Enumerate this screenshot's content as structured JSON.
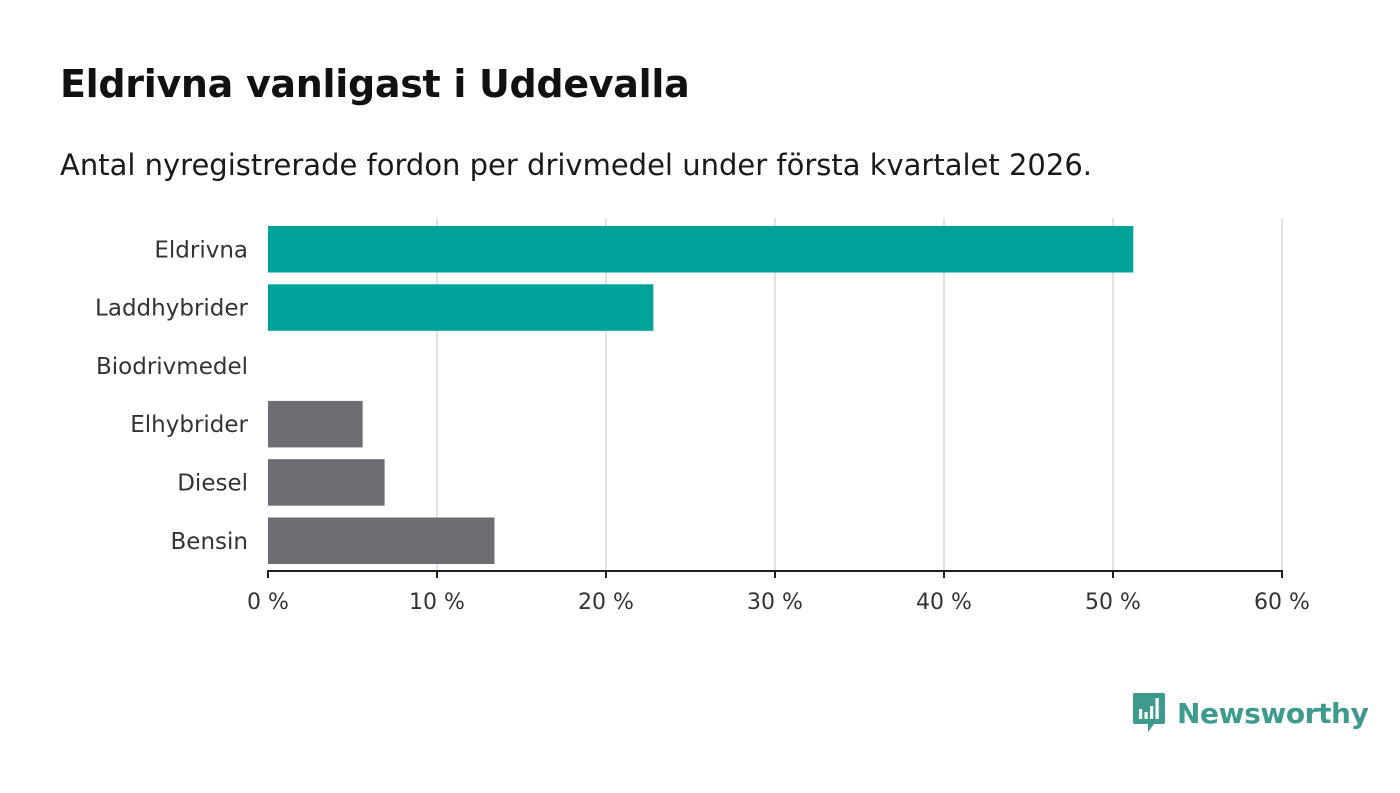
{
  "header": {
    "title": "Eldrivna vanligast i Uddevalla",
    "subtitle": "Antal nyregistrerade fordon per drivmedel under första kvartalet 2026."
  },
  "chart_data": {
    "type": "bar",
    "orientation": "horizontal",
    "categories": [
      "Eldrivna",
      "Laddhybrider",
      "Biodrivmedel",
      "Elhybrider",
      "Diesel",
      "Bensin"
    ],
    "values": [
      51.2,
      22.8,
      0,
      5.6,
      6.9,
      13.4
    ],
    "bar_colors": [
      "#00a39a",
      "#00a39a",
      "#00a39a",
      "#6e6d73",
      "#6e6d73",
      "#6e6d73"
    ],
    "xlim": [
      0,
      60
    ],
    "xticks": [
      0,
      10,
      20,
      30,
      40,
      50,
      60
    ],
    "xtick_labels": [
      "0 %",
      "10 %",
      "20 %",
      "30 %",
      "40 %",
      "50 %",
      "60 %"
    ],
    "grid": true,
    "title": "Eldrivna vanligast i Uddevalla",
    "xlabel": "",
    "ylabel": ""
  },
  "branding": {
    "name": "Newsworthy",
    "icon": "newsworthy-logo-icon",
    "color": "#3d9a8e"
  }
}
